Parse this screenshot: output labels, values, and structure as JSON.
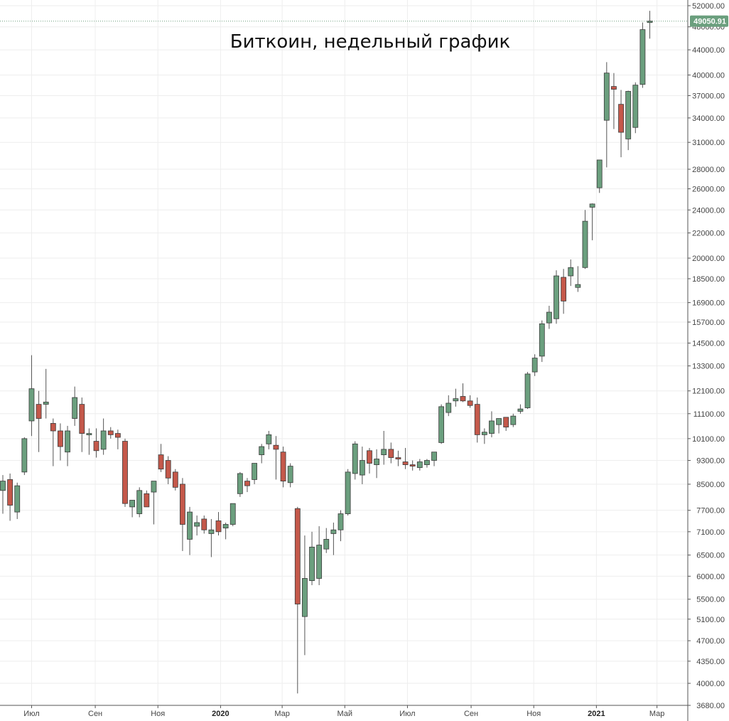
{
  "chart_data": {
    "type": "candlestick",
    "title": "Биткоин, недельный график",
    "scale": "log",
    "ylim": [
      3680,
      52000
    ],
    "grid": true,
    "colors": {
      "up": "#6b9f7e",
      "down": "#c4584a",
      "wick": "#555555",
      "grid": "#eeeeee",
      "price_tag": "#6b9f7e"
    },
    "y_ticks": [
      52000,
      48000,
      44000,
      40000,
      37000,
      34000,
      31000,
      28000,
      26000,
      24000,
      22000,
      20000,
      18500,
      16900,
      15700,
      14500,
      13300,
      12100,
      11100,
      10100,
      9300,
      8500,
      7700,
      7100,
      6500,
      6000,
      5500,
      5100,
      4700,
      4350,
      4000,
      3680
    ],
    "y_tick_labels": [
      "52000.00",
      "48000.00",
      "44000.00",
      "40000.00",
      "37000.00",
      "34000.00",
      "31000.00",
      "28000.00",
      "26000.00",
      "24000.00",
      "22000.00",
      "20000.00",
      "18500.00",
      "16900.00",
      "15700.00",
      "14500.00",
      "13300.00",
      "12100.00",
      "11100.00",
      "10100.00",
      "9300.00",
      "8500.00",
      "7700.00",
      "7100.00",
      "6500.00",
      "6000.00",
      "5500.00",
      "5100.00",
      "4700.00",
      "4350.00",
      "4000.00",
      "3680.00"
    ],
    "x_range": [
      "2019-06-03",
      "2021-03-22"
    ],
    "x_ticks": [
      {
        "date": "2019-07-01",
        "label": "Июл",
        "bold": false
      },
      {
        "date": "2019-09-01",
        "label": "Сен",
        "bold": false
      },
      {
        "date": "2019-11-01",
        "label": "Ноя",
        "bold": false
      },
      {
        "date": "2020-01-01",
        "label": "2020",
        "bold": true
      },
      {
        "date": "2020-03-01",
        "label": "Мар",
        "bold": false
      },
      {
        "date": "2020-05-01",
        "label": "Май",
        "bold": false
      },
      {
        "date": "2020-07-01",
        "label": "Июл",
        "bold": false
      },
      {
        "date": "2020-09-01",
        "label": "Сен",
        "bold": false
      },
      {
        "date": "2020-11-01",
        "label": "Ноя",
        "bold": false
      },
      {
        "date": "2021-01-01",
        "label": "2021",
        "bold": true
      },
      {
        "date": "2021-03-01",
        "label": "Мар",
        "bold": false
      }
    ],
    "last_price": 49050.91,
    "last_price_label": "49050.91",
    "candles": [
      {
        "date": "2019-06-03",
        "o": 8300,
        "h": 8800,
        "l": 7600,
        "c": 8600
      },
      {
        "date": "2019-06-10",
        "o": 8650,
        "h": 8850,
        "l": 7400,
        "c": 7850
      },
      {
        "date": "2019-06-17",
        "o": 7650,
        "h": 8550,
        "l": 7450,
        "c": 8450
      },
      {
        "date": "2019-06-24",
        "o": 8900,
        "h": 10150,
        "l": 8800,
        "c": 10100
      },
      {
        "date": "2019-07-01",
        "o": 10800,
        "h": 13850,
        "l": 10200,
        "c": 12200
      },
      {
        "date": "2019-07-08",
        "o": 11500,
        "h": 12100,
        "l": 9600,
        "c": 10900
      },
      {
        "date": "2019-07-15",
        "o": 11500,
        "h": 13150,
        "l": 10900,
        "c": 11600
      },
      {
        "date": "2019-07-22",
        "o": 10700,
        "h": 10900,
        "l": 9100,
        "c": 10400
      },
      {
        "date": "2019-07-29",
        "o": 10400,
        "h": 10700,
        "l": 9300,
        "c": 9800
      },
      {
        "date": "2019-08-05",
        "o": 9600,
        "h": 10600,
        "l": 9100,
        "c": 10400
      },
      {
        "date": "2019-08-12",
        "o": 10900,
        "h": 12300,
        "l": 10600,
        "c": 11800
      },
      {
        "date": "2019-08-19",
        "o": 11500,
        "h": 11800,
        "l": 9600,
        "c": 10300
      },
      {
        "date": "2019-08-26",
        "o": 10300,
        "h": 10500,
        "l": 9500,
        "c": 10300
      },
      {
        "date": "2019-09-02",
        "o": 10000,
        "h": 10500,
        "l": 9400,
        "c": 9650
      },
      {
        "date": "2019-09-09",
        "o": 9700,
        "h": 10900,
        "l": 9500,
        "c": 10400
      },
      {
        "date": "2019-09-16",
        "o": 10400,
        "h": 10550,
        "l": 10100,
        "c": 10250
      },
      {
        "date": "2019-09-23",
        "o": 10300,
        "h": 10450,
        "l": 9700,
        "c": 10150
      },
      {
        "date": "2019-09-30",
        "o": 10000,
        "h": 10100,
        "l": 7800,
        "c": 7900
      },
      {
        "date": "2019-10-07",
        "o": 7800,
        "h": 8000,
        "l": 7500,
        "c": 8000
      },
      {
        "date": "2019-10-14",
        "o": 7600,
        "h": 8400,
        "l": 7500,
        "c": 8300
      },
      {
        "date": "2019-10-21",
        "o": 8200,
        "h": 8300,
        "l": 7800,
        "c": 7800
      },
      {
        "date": "2019-10-28",
        "o": 8250,
        "h": 8500,
        "l": 7300,
        "c": 8600
      },
      {
        "date": "2019-11-04",
        "o": 9500,
        "h": 9900,
        "l": 8900,
        "c": 9000
      },
      {
        "date": "2019-11-11",
        "o": 9300,
        "h": 9450,
        "l": 8500,
        "c": 8700
      },
      {
        "date": "2019-11-18",
        "o": 8900,
        "h": 9000,
        "l": 8300,
        "c": 8400
      },
      {
        "date": "2019-11-25",
        "o": 8500,
        "h": 8700,
        "l": 6600,
        "c": 7300
      },
      {
        "date": "2019-12-02",
        "o": 6900,
        "h": 7800,
        "l": 6500,
        "c": 7650
      },
      {
        "date": "2019-12-09",
        "o": 7250,
        "h": 7550,
        "l": 7000,
        "c": 7350
      },
      {
        "date": "2019-12-16",
        "o": 7450,
        "h": 7550,
        "l": 7050,
        "c": 7150
      },
      {
        "date": "2019-12-23",
        "o": 7050,
        "h": 7450,
        "l": 6450,
        "c": 7150
      },
      {
        "date": "2019-12-30",
        "o": 7400,
        "h": 7650,
        "l": 7000,
        "c": 7100
      },
      {
        "date": "2020-01-06",
        "o": 7200,
        "h": 7350,
        "l": 6900,
        "c": 7300
      },
      {
        "date": "2020-01-13",
        "o": 7300,
        "h": 7900,
        "l": 7250,
        "c": 7900
      },
      {
        "date": "2020-01-20",
        "o": 8200,
        "h": 8900,
        "l": 8100,
        "c": 8850
      },
      {
        "date": "2020-01-27",
        "o": 8600,
        "h": 8700,
        "l": 8250,
        "c": 8450
      },
      {
        "date": "2020-02-03",
        "o": 8650,
        "h": 9200,
        "l": 8500,
        "c": 9200
      },
      {
        "date": "2020-02-10",
        "o": 9500,
        "h": 9900,
        "l": 9200,
        "c": 9800
      },
      {
        "date": "2020-02-17",
        "o": 9900,
        "h": 10400,
        "l": 9700,
        "c": 10250
      },
      {
        "date": "2020-02-24",
        "o": 9850,
        "h": 10200,
        "l": 8650,
        "c": 9700
      },
      {
        "date": "2020-03-02",
        "o": 9600,
        "h": 9800,
        "l": 8400,
        "c": 8600
      },
      {
        "date": "2020-03-09",
        "o": 8550,
        "h": 9200,
        "l": 8400,
        "c": 9100
      },
      {
        "date": "2020-03-16",
        "o": 7750,
        "h": 7800,
        "l": 3850,
        "c": 5400
      },
      {
        "date": "2020-03-23",
        "o": 5150,
        "h": 7000,
        "l": 4450,
        "c": 5950
      },
      {
        "date": "2020-03-30",
        "o": 5900,
        "h": 7100,
        "l": 5800,
        "c": 6700
      },
      {
        "date": "2020-04-06",
        "o": 5950,
        "h": 7250,
        "l": 5800,
        "c": 6750
      },
      {
        "date": "2020-04-13",
        "o": 6650,
        "h": 7200,
        "l": 6550,
        "c": 6900
      },
      {
        "date": "2020-04-20",
        "o": 7050,
        "h": 7350,
        "l": 6500,
        "c": 7150
      },
      {
        "date": "2020-04-27",
        "o": 7150,
        "h": 7700,
        "l": 6850,
        "c": 7600
      },
      {
        "date": "2020-05-04",
        "o": 7600,
        "h": 9000,
        "l": 7550,
        "c": 8900
      },
      {
        "date": "2020-05-11",
        "o": 8850,
        "h": 10000,
        "l": 8650,
        "c": 9900
      },
      {
        "date": "2020-05-18",
        "o": 8800,
        "h": 9800,
        "l": 8500,
        "c": 9300
      },
      {
        "date": "2020-05-25",
        "o": 9650,
        "h": 9750,
        "l": 8850,
        "c": 9200
      },
      {
        "date": "2020-06-01",
        "o": 9150,
        "h": 9700,
        "l": 8700,
        "c": 9350
      },
      {
        "date": "2020-06-08",
        "o": 9500,
        "h": 10400,
        "l": 9150,
        "c": 9700
      },
      {
        "date": "2020-06-15",
        "o": 9700,
        "h": 9950,
        "l": 9200,
        "c": 9400
      },
      {
        "date": "2020-06-22",
        "o": 9400,
        "h": 9650,
        "l": 9100,
        "c": 9350
      },
      {
        "date": "2020-06-29",
        "o": 9250,
        "h": 9750,
        "l": 9000,
        "c": 9150
      },
      {
        "date": "2020-07-06",
        "o": 9150,
        "h": 9300,
        "l": 8950,
        "c": 9100
      },
      {
        "date": "2020-07-13",
        "o": 9050,
        "h": 9350,
        "l": 8950,
        "c": 9250
      },
      {
        "date": "2020-07-20",
        "o": 9150,
        "h": 9350,
        "l": 9050,
        "c": 9300
      },
      {
        "date": "2020-07-27",
        "o": 9300,
        "h": 9600,
        "l": 9100,
        "c": 9600
      },
      {
        "date": "2020-08-03",
        "o": 9950,
        "h": 11500,
        "l": 9900,
        "c": 11400
      },
      {
        "date": "2020-08-10",
        "o": 11150,
        "h": 11900,
        "l": 11000,
        "c": 11550
      },
      {
        "date": "2020-08-17",
        "o": 11650,
        "h": 12200,
        "l": 11400,
        "c": 11750
      },
      {
        "date": "2020-08-24",
        "o": 11850,
        "h": 12450,
        "l": 11600,
        "c": 11650
      },
      {
        "date": "2020-08-31",
        "o": 11650,
        "h": 11900,
        "l": 11350,
        "c": 11450
      },
      {
        "date": "2020-09-07",
        "o": 11500,
        "h": 11800,
        "l": 9950,
        "c": 10250
      },
      {
        "date": "2020-09-14",
        "o": 10250,
        "h": 10500,
        "l": 9900,
        "c": 10350
      },
      {
        "date": "2020-09-21",
        "o": 10300,
        "h": 11200,
        "l": 10150,
        "c": 10800
      },
      {
        "date": "2020-09-28",
        "o": 10650,
        "h": 10900,
        "l": 10300,
        "c": 10900
      },
      {
        "date": "2020-10-05",
        "o": 10950,
        "h": 10950,
        "l": 10400,
        "c": 10550
      },
      {
        "date": "2020-10-12",
        "o": 10650,
        "h": 11100,
        "l": 10550,
        "c": 11000
      },
      {
        "date": "2020-10-19",
        "o": 11200,
        "h": 11500,
        "l": 11100,
        "c": 11300
      },
      {
        "date": "2020-10-26",
        "o": 11350,
        "h": 13000,
        "l": 11300,
        "c": 12900
      },
      {
        "date": "2020-11-02",
        "o": 13000,
        "h": 13900,
        "l": 12800,
        "c": 13700
      },
      {
        "date": "2020-11-09",
        "o": 13800,
        "h": 15800,
        "l": 13500,
        "c": 15600
      },
      {
        "date": "2020-11-16",
        "o": 15650,
        "h": 16700,
        "l": 15300,
        "c": 16300
      },
      {
        "date": "2020-11-23",
        "o": 15900,
        "h": 19100,
        "l": 15600,
        "c": 18700
      },
      {
        "date": "2020-11-30",
        "o": 18600,
        "h": 19200,
        "l": 16200,
        "c": 17000
      },
      {
        "date": "2020-12-07",
        "o": 18700,
        "h": 19900,
        "l": 18000,
        "c": 19300
      },
      {
        "date": "2020-12-14",
        "o": 17900,
        "h": 19400,
        "l": 17600,
        "c": 18100
      },
      {
        "date": "2020-12-21",
        "o": 19300,
        "h": 24000,
        "l": 19200,
        "c": 23000
      },
      {
        "date": "2020-12-28",
        "o": 24250,
        "h": 24600,
        "l": 21400,
        "c": 24550
      },
      {
        "date": "2021-01-04",
        "o": 26100,
        "h": 29000,
        "l": 25600,
        "c": 29000
      },
      {
        "date": "2021-01-11",
        "o": 33700,
        "h": 42000,
        "l": 28200,
        "c": 40300
      },
      {
        "date": "2021-01-18",
        "o": 38300,
        "h": 40300,
        "l": 32600,
        "c": 37900
      },
      {
        "date": "2021-01-25",
        "o": 35800,
        "h": 37800,
        "l": 29300,
        "c": 32200
      },
      {
        "date": "2021-02-01",
        "o": 31400,
        "h": 37700,
        "l": 30100,
        "c": 37600
      },
      {
        "date": "2021-02-08",
        "o": 32800,
        "h": 38900,
        "l": 32100,
        "c": 38500
      },
      {
        "date": "2021-02-15",
        "o": 38600,
        "h": 48800,
        "l": 38100,
        "c": 47500
      },
      {
        "date": "2021-02-22",
        "o": 48800,
        "h": 51000,
        "l": 45900,
        "c": 49050.91
      }
    ]
  }
}
